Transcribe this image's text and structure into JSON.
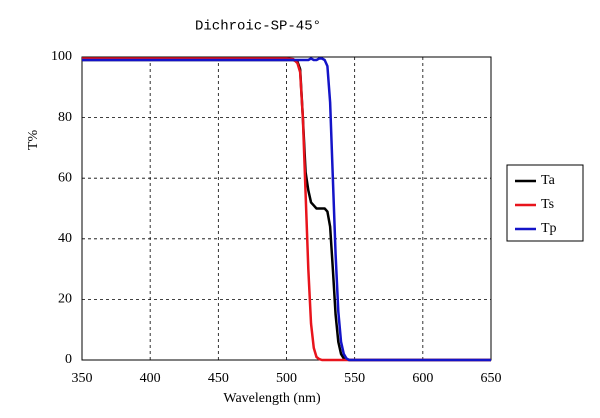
{
  "chart_data": {
    "type": "line",
    "title": "Dichroic-SP-45°",
    "xlabel": "Wavelength (nm)",
    "ylabel": "T%",
    "x": [
      350,
      400,
      450,
      500,
      505,
      508,
      510,
      512,
      514,
      516,
      518,
      520,
      522,
      524,
      526,
      528,
      530,
      532,
      534,
      536,
      538,
      540,
      542,
      544,
      546,
      550,
      600,
      650
    ],
    "series": [
      {
        "name": "Ta",
        "color": "#000000",
        "values": [
          99,
          99,
          99,
          99,
          99,
          98.5,
          96,
          80,
          62,
          56,
          52,
          51,
          50,
          50,
          50,
          50,
          49,
          44,
          30,
          15,
          6,
          2,
          0.5,
          0.2,
          0,
          0,
          0,
          0
        ]
      },
      {
        "name": "Ts",
        "color": "#e8141c",
        "values": [
          99.5,
          99.5,
          99.5,
          99.5,
          99.3,
          98,
          95,
          80,
          55,
          30,
          12,
          4,
          1,
          0.3,
          0,
          0,
          0,
          0,
          0,
          0,
          0,
          0,
          0,
          0,
          0,
          0,
          0,
          0
        ]
      },
      {
        "name": "Tp",
        "color": "#1414c8",
        "values": [
          99,
          99,
          99,
          99,
          99,
          99,
          99,
          99,
          99,
          99,
          99.5,
          99,
          99,
          99.5,
          99.5,
          99,
          97,
          85,
          60,
          35,
          16,
          6,
          2,
          0.5,
          0,
          0,
          0,
          0
        ]
      }
    ],
    "xlim": [
      350,
      650
    ],
    "xticks": [
      350,
      400,
      450,
      500,
      550,
      600,
      650
    ],
    "ylim": [
      0,
      100
    ],
    "yticks": [
      0,
      20,
      40,
      60,
      80,
      100
    ],
    "grid": true,
    "legend": "right"
  }
}
